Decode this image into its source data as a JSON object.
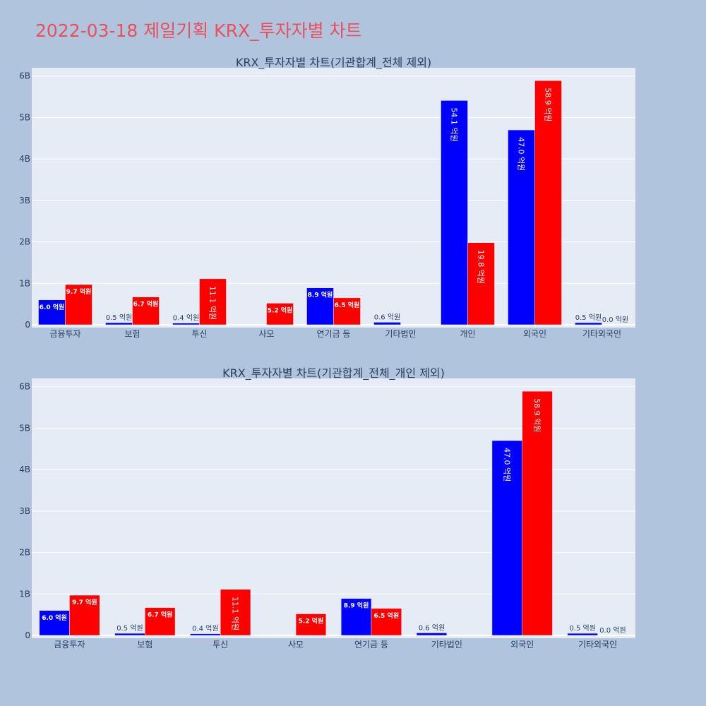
{
  "page": {
    "title": "2022-03-18 제일기획 KRX_투자자별 차트",
    "colors": {
      "background": "#b0c4de",
      "plot_background": "#e5ecf6",
      "grid": "#ffffff",
      "title": "#e8505b",
      "text": "#2a3f5f",
      "series_blue": "#0000ff",
      "series_red": "#ff0000"
    }
  },
  "chart_data": [
    {
      "type": "bar",
      "title": "KRX_투자자별 차트(기관합계_전체 제외)",
      "categories": [
        "금융투자",
        "보험",
        "투신",
        "사모",
        "연기금 등",
        "기타법인",
        "개인",
        "외국인",
        "기타외국인"
      ],
      "ylim": [
        0,
        6.2
      ],
      "yticks": [
        0,
        1,
        2,
        3,
        4,
        5,
        6
      ],
      "ytick_labels": [
        "0",
        "1B",
        "2B",
        "3B",
        "4B",
        "5B",
        "6B"
      ],
      "grid": true,
      "series": [
        {
          "color": "#0000ff",
          "values": [
            0.6,
            0.05,
            0.04,
            0.0,
            0.89,
            0.06,
            5.41,
            4.7,
            0.05
          ],
          "labels": [
            "6.0 억원",
            "0.5 억원",
            "0.4 억원",
            "",
            "8.9 억원",
            "0.6 억원",
            "54.1 억원",
            "47.0 억원",
            "0.5 억원"
          ]
        },
        {
          "color": "#ff0000",
          "values": [
            0.97,
            0.67,
            1.11,
            0.52,
            0.65,
            0.0,
            1.98,
            5.89,
            0.0
          ],
          "labels": [
            "9.7 억원",
            "6.7 억원",
            "11.1 억원",
            "5.2 억원",
            "6.5 억원",
            "",
            "19.8 억원",
            "58.9 억원",
            "0.0 억원"
          ]
        }
      ]
    },
    {
      "type": "bar",
      "title": "KRX_투자자별 차트(기관합계_전체_개인 제외)",
      "categories": [
        "금융투자",
        "보험",
        "투신",
        "사모",
        "연기금 등",
        "기타법인",
        "외국인",
        "기타외국인"
      ],
      "ylim": [
        0,
        6.2
      ],
      "yticks": [
        0,
        1,
        2,
        3,
        4,
        5,
        6
      ],
      "ytick_labels": [
        "0",
        "1B",
        "2B",
        "3B",
        "4B",
        "5B",
        "6B"
      ],
      "grid": true,
      "series": [
        {
          "color": "#0000ff",
          "values": [
            0.6,
            0.05,
            0.04,
            0.0,
            0.89,
            0.06,
            4.7,
            0.05
          ],
          "labels": [
            "6.0 억원",
            "0.5 억원",
            "0.4 억원",
            "",
            "8.9 억원",
            "0.6 억원",
            "47.0 억원",
            "0.5 억원"
          ]
        },
        {
          "color": "#ff0000",
          "values": [
            0.97,
            0.67,
            1.11,
            0.52,
            0.65,
            0.0,
            5.89,
            0.0
          ],
          "labels": [
            "9.7 억원",
            "6.7 억원",
            "11.1 억원",
            "5.2 억원",
            "6.5 억원",
            "",
            "58.9 억원",
            "0.0 억원"
          ]
        }
      ]
    }
  ]
}
